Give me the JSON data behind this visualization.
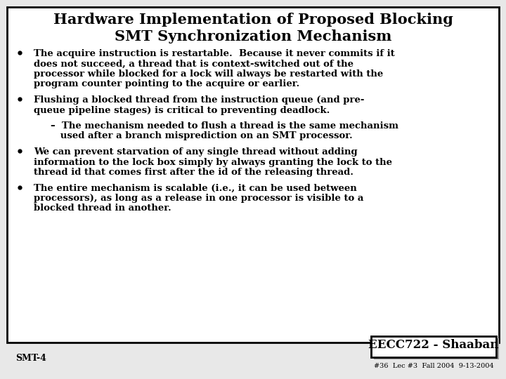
{
  "title_line1": "Hardware Implementation of Proposed Blocking",
  "title_line2": "SMT Synchronization Mechanism",
  "background_color": "#e8e8e8",
  "slide_bg": "#ffffff",
  "border_color": "#000000",
  "title_fontsize": 15,
  "body_fontsize": 9.5,
  "sub_fontsize": 9.5,
  "bullet_items": [
    {
      "level": 1,
      "lines": [
        "The acquire instruction is restartable.  Because it never commits if it",
        "does not succeed, a thread that is context-switched out of the",
        "processor while blocked for a lock will always be restarted with the",
        "program counter pointing to the acquire or earlier."
      ]
    },
    {
      "level": 1,
      "lines": [
        "Flushing a blocked thread from the instruction queue (and pre-",
        "queue pipeline stages) is critical to preventing deadlock."
      ]
    },
    {
      "level": 2,
      "lines": [
        "–  The mechanism needed to flush a thread is the same mechanism",
        "   used after a branch misprediction on an SMT processor."
      ]
    },
    {
      "level": 1,
      "lines": [
        "We can prevent starvation of any single thread without adding",
        "information to the lock box simply by always granting the lock to the",
        "thread id that comes first after the id of the releasing thread."
      ]
    },
    {
      "level": 1,
      "lines": [
        "The entire mechanism is scalable (i.e., it can be used between",
        "processors), as long as a release in one processor is visible to a",
        "blocked thread in another."
      ]
    }
  ],
  "footer_left": "SMT-4",
  "footer_right_line1": "EECC722 - Shaaban",
  "footer_right_line2": "#36  Lec #3  Fall 2004  9-13-2004",
  "footer_fontsize": 9,
  "eecc_fontsize": 12
}
